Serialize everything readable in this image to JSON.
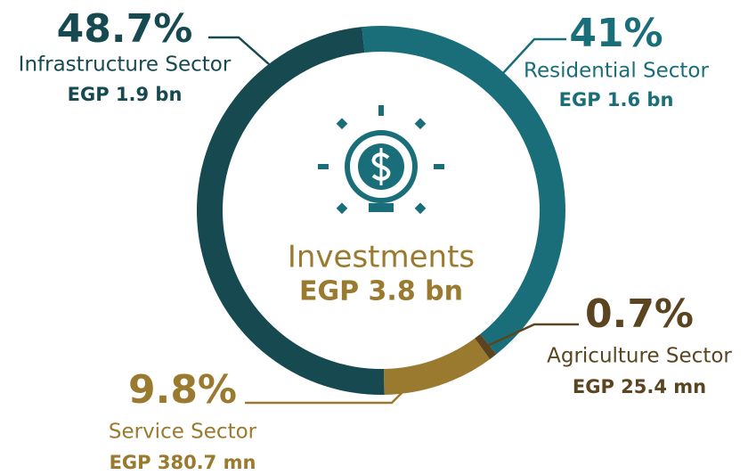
{
  "chart_data": {
    "type": "donut",
    "center_title": "Investments",
    "center_value": "EGP 3.8 bn",
    "categories": [
      "Residential Sector",
      "Agriculture Sector",
      "Service Sector",
      "Infrastructure Sector"
    ],
    "values": [
      41,
      0.7,
      9.8,
      48.7
    ],
    "value_labels": [
      "41%",
      "0.7%",
      "9.8%",
      "48.7%"
    ],
    "amounts": [
      "EGP 1.6 bn",
      "EGP 25.4 mn",
      "EGP 380.7 mn",
      "EGP 1.9 bn"
    ],
    "colors": [
      "#1a6e7a",
      "#5a4520",
      "#9a7a2e",
      "#164a50"
    ]
  }
}
